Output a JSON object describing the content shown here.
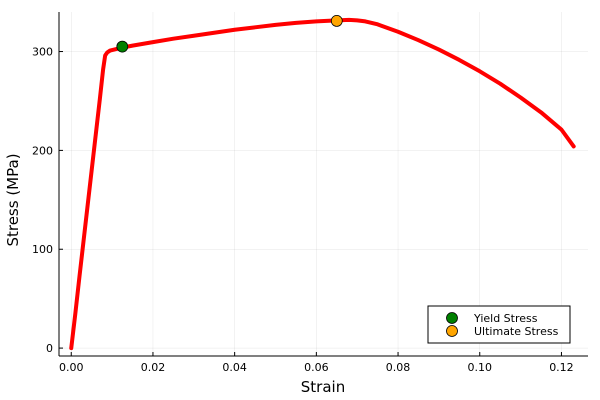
{
  "chart_data": {
    "type": "line",
    "title": "",
    "xlabel": "Strain",
    "ylabel": "Stress (MPa)",
    "xlim": [
      -0.003,
      0.1265
    ],
    "ylim": [
      -8,
      340
    ],
    "x_ticks": [
      0.0,
      0.02,
      0.04,
      0.06,
      0.08,
      0.1,
      0.12
    ],
    "x_tick_labels": [
      "0.00",
      "0.02",
      "0.04",
      "0.06",
      "0.08",
      "0.10",
      "0.12"
    ],
    "y_ticks": [
      0,
      100,
      200,
      300
    ],
    "y_tick_labels": [
      "0",
      "100",
      "200",
      "300"
    ],
    "grid": true,
    "legend_position": "bottom-right",
    "curve": {
      "color": "#ff0000",
      "x": [
        0.0,
        0.001,
        0.002,
        0.003,
        0.004,
        0.005,
        0.006,
        0.007,
        0.0078,
        0.0083,
        0.0088,
        0.0095,
        0.0105,
        0.0115,
        0.0125,
        0.015,
        0.02,
        0.025,
        0.03,
        0.035,
        0.04,
        0.045,
        0.05,
        0.055,
        0.06,
        0.065,
        0.068,
        0.07,
        0.072,
        0.075,
        0.08,
        0.085,
        0.09,
        0.095,
        0.1,
        0.105,
        0.11,
        0.115,
        0.12,
        0.123
      ],
      "y": [
        0,
        35,
        72,
        108,
        144,
        180,
        216,
        252,
        282,
        296,
        299,
        301,
        302,
        303,
        304,
        306,
        309.5,
        313,
        316,
        319,
        322,
        324.5,
        327,
        329,
        330.5,
        331.5,
        332,
        331.5,
        330.5,
        327.5,
        320,
        311.5,
        302,
        291.5,
        280,
        267.5,
        253.5,
        238.5,
        221,
        204
      ]
    },
    "series": [
      {
        "name": "Yield Stress",
        "x": [
          0.0125
        ],
        "y": [
          305
        ],
        "color": "#008000"
      },
      {
        "name": "Ultimate Stress",
        "x": [
          0.065
        ],
        "y": [
          331
        ],
        "color": "#ffa500"
      }
    ]
  }
}
